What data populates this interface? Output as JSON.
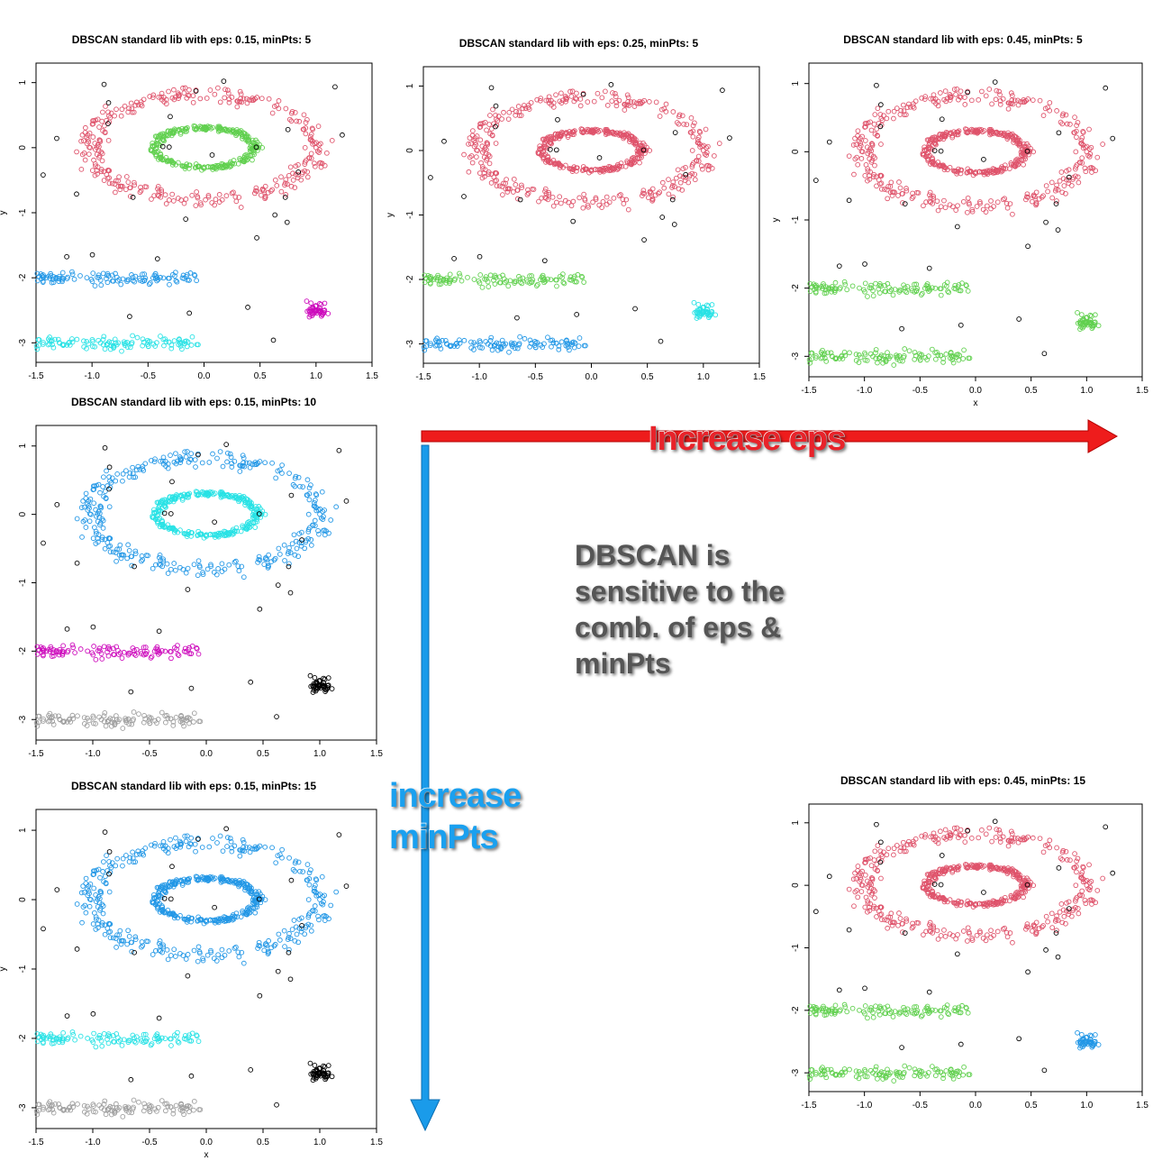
{
  "annotations": {
    "increase_eps": "Increase eps",
    "increase_minpts_line1": "increase",
    "increase_minpts_line2": "minPts",
    "sensitivity_lines": [
      "DBSCAN is",
      "sensitive to the",
      "comb. of eps &",
      "minPts"
    ]
  },
  "colors": {
    "eps_arrow": "#ee1c1c",
    "minpts_arrow": "#1a9bea",
    "cluster_palette": [
      "#000000",
      "#df536b",
      "#61d04f",
      "#2297e6",
      "#28e2e5",
      "#cd0bbc",
      "#f5c710",
      "#9e9e9e"
    ]
  },
  "chart_data": [
    {
      "id": "eps015_min5",
      "type": "scatter",
      "title": "DBSCAN standard lib with eps: 0.15, minPts: 5",
      "xlabel": "",
      "ylabel": "y",
      "xlim": [
        -1.5,
        1.5
      ],
      "ylim": [
        -3.3,
        1.3
      ],
      "xticks": [
        "-1.5",
        "-1.0",
        "-0.5",
        "0.0",
        "0.5",
        "1.0",
        "1.5"
      ],
      "yticks": [
        "1",
        "0",
        "-1",
        "-2",
        "-3"
      ],
      "clusters": {
        "ring_outer": "#df536b",
        "ring_inner": "#61d04f",
        "band_upper": "#2297e6",
        "band_lower": "#28e2e5",
        "blob": "#cd0bbc"
      },
      "noise_color": "#000000"
    },
    {
      "id": "eps025_min5",
      "type": "scatter",
      "title": "DBSCAN standard lib with eps: 0.25, minPts: 5",
      "xlabel": "",
      "ylabel": "y",
      "xlim": [
        -1.5,
        1.5
      ],
      "ylim": [
        -3.3,
        1.3
      ],
      "xticks": [
        "-1.5",
        "-1.0",
        "-0.5",
        "0.0",
        "0.5",
        "1.0",
        "1.5"
      ],
      "yticks": [
        "1",
        "0",
        "-1",
        "-2",
        "-3"
      ],
      "clusters": {
        "ring_outer": "#df536b",
        "ring_inner": "#df536b",
        "band_upper": "#61d04f",
        "band_lower": "#2297e6",
        "blob": "#28e2e5"
      },
      "noise_color": "#000000"
    },
    {
      "id": "eps045_min5",
      "type": "scatter",
      "title": "DBSCAN standard lib with eps: 0.45, minPts: 5",
      "xlabel": "x",
      "ylabel": "y",
      "xlim": [
        -1.5,
        1.5
      ],
      "ylim": [
        -3.3,
        1.3
      ],
      "xticks": [
        "-1.5",
        "-1.0",
        "-0.5",
        "0.0",
        "0.5",
        "1.0",
        "1.5"
      ],
      "yticks": [
        "1",
        "0",
        "-1",
        "-2",
        "-3"
      ],
      "clusters": {
        "ring_outer": "#df536b",
        "ring_inner": "#df536b",
        "band_upper": "#61d04f",
        "band_lower": "#61d04f",
        "blob": "#61d04f"
      },
      "noise_color": "#000000"
    },
    {
      "id": "eps015_min10",
      "type": "scatter",
      "title": "DBSCAN standard lib with eps: 0.15, minPts: 10",
      "xlabel": "",
      "ylabel": "",
      "xlim": [
        -1.5,
        1.5
      ],
      "ylim": [
        -3.3,
        1.3
      ],
      "xticks": [
        "-1.5",
        "-1.0",
        "-0.5",
        "0.0",
        "0.5",
        "1.0",
        "1.5"
      ],
      "yticks": [
        "1",
        "0",
        "-1",
        "-2",
        "-3"
      ],
      "clusters": {
        "ring_outer": "#2297e6",
        "ring_inner": "#28e2e5",
        "band_upper": "#cd0bbc",
        "band_lower": "#9e9e9e",
        "blob": "#000000"
      },
      "noise_color": "#000000"
    },
    {
      "id": "eps015_min15",
      "type": "scatter",
      "title": "DBSCAN standard lib with eps: 0.15, minPts: 15",
      "xlabel": "x",
      "ylabel": "y",
      "xlim": [
        -1.5,
        1.5
      ],
      "ylim": [
        -3.3,
        1.3
      ],
      "xticks": [
        "-1.5",
        "-1.0",
        "-0.5",
        "0.0",
        "0.5",
        "1.0",
        "1.5"
      ],
      "yticks": [
        "1",
        "0",
        "-1",
        "-2",
        "-3"
      ],
      "clusters": {
        "ring_outer": "#2297e6",
        "ring_inner": "#2297e6",
        "band_upper": "#28e2e5",
        "band_lower": "#9e9e9e",
        "blob": "#000000"
      },
      "noise_color": "#000000"
    },
    {
      "id": "eps045_min15",
      "type": "scatter",
      "title": "DBSCAN standard lib with eps: 0.45, minPts: 15",
      "xlabel": "",
      "ylabel": "",
      "xlim": [
        -1.5,
        1.5
      ],
      "ylim": [
        -3.3,
        1.3
      ],
      "xticks": [
        "-1.5",
        "-1.0",
        "-0.5",
        "0.0",
        "0.5",
        "1.0",
        "1.5"
      ],
      "yticks": [
        "1",
        "0",
        "-1",
        "-2",
        "-3"
      ],
      "clusters": {
        "ring_outer": "#df536b",
        "ring_inner": "#df536b",
        "band_upper": "#61d04f",
        "band_lower": "#61d04f",
        "blob": "#2297e6"
      },
      "noise_color": "#000000"
    }
  ]
}
